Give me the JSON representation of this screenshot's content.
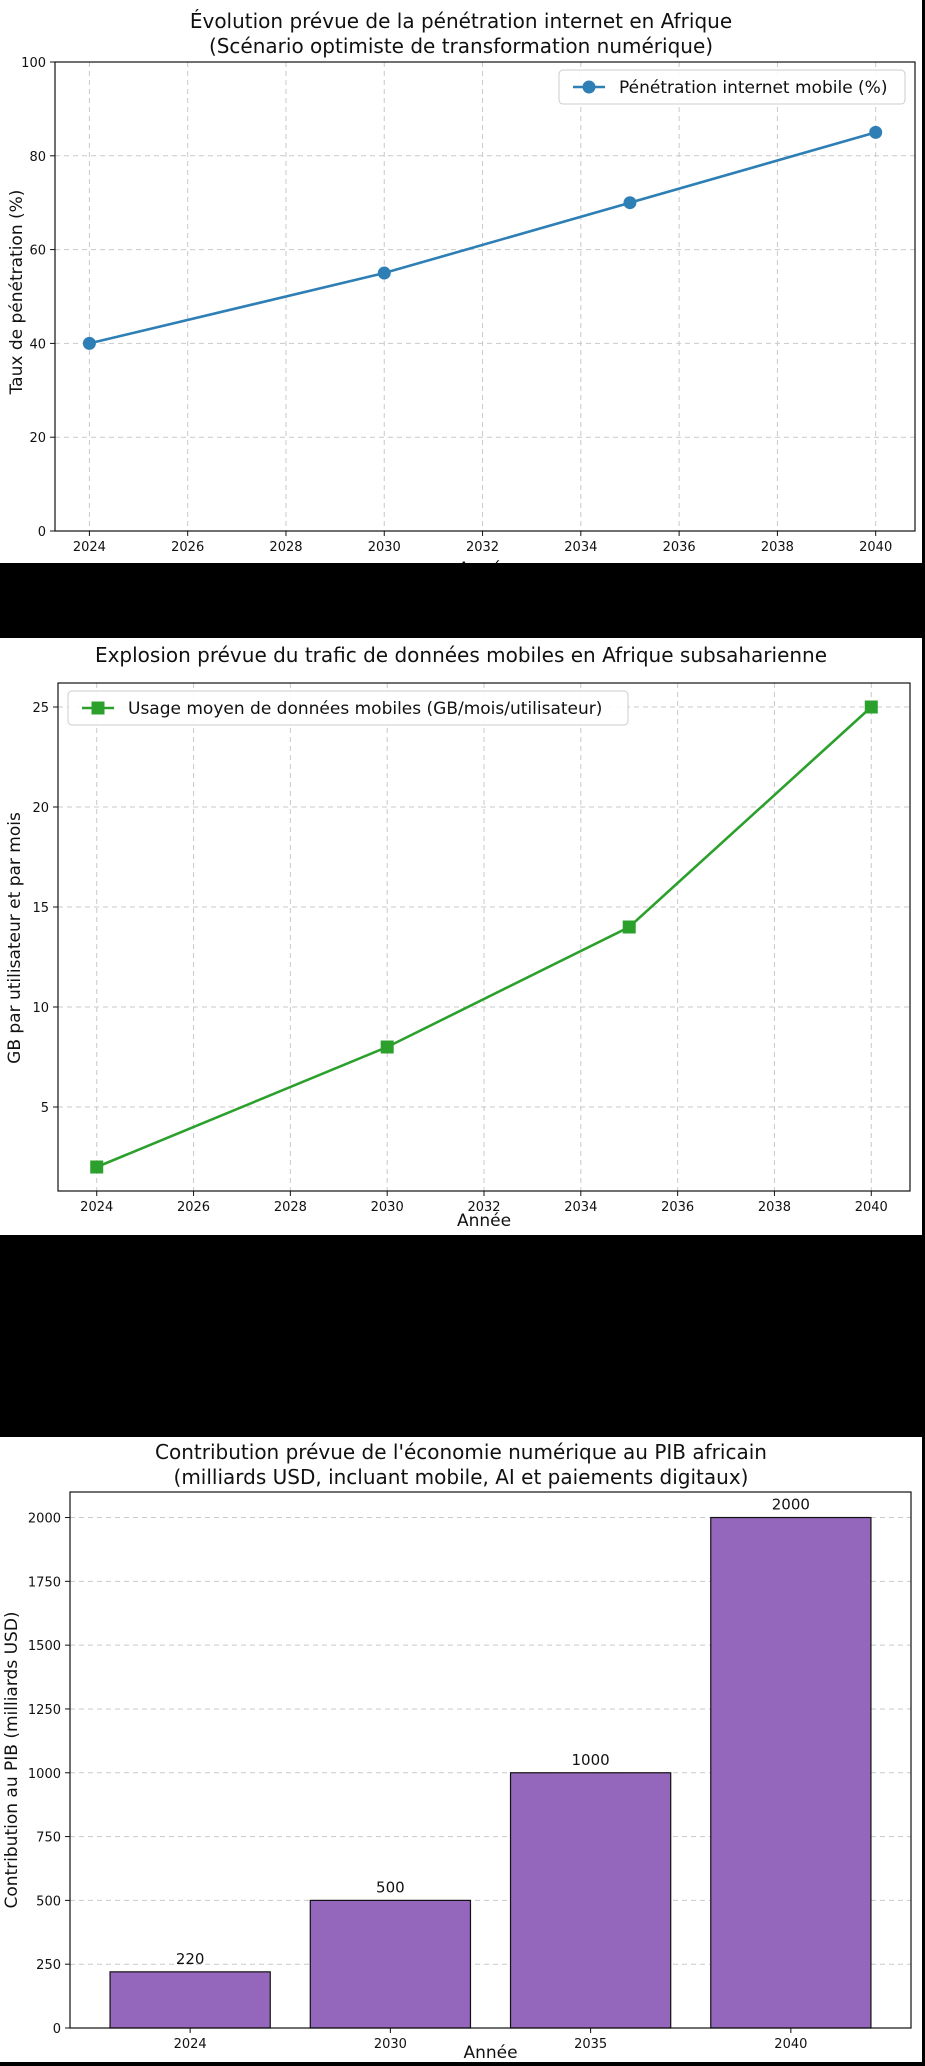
{
  "chart_data": [
    {
      "type": "line",
      "title": "Évolution prévue de la pénétration internet en Afrique",
      "subtitle": "(Scénario optimiste de transformation numérique)",
      "xlabel": "Année",
      "ylabel": "Taux de pénétration (%)",
      "xlim": [
        2023.3,
        2040.8
      ],
      "ylim": [
        0,
        100
      ],
      "xticks": [
        2024,
        2026,
        2028,
        2030,
        2032,
        2034,
        2036,
        2038,
        2040
      ],
      "yticks": [
        0,
        20,
        40,
        60,
        80,
        100
      ],
      "grid": true,
      "legend_position": "top-right",
      "series": [
        {
          "name": "Pénétration internet mobile (%)",
          "color": "#2e7fb5",
          "marker": "circle",
          "x": [
            2024,
            2030,
            2035,
            2040
          ],
          "y": [
            40,
            55,
            70,
            85
          ]
        }
      ]
    },
    {
      "type": "line",
      "title": "Explosion prévue du trafic de données mobiles en Afrique subsaharienne",
      "subtitle": "",
      "xlabel": "Année",
      "ylabel": "GB par utilisateur et par mois",
      "xlim": [
        2023.2,
        2040.8
      ],
      "ylim": [
        0.8,
        26.2
      ],
      "xticks": [
        2024,
        2026,
        2028,
        2030,
        2032,
        2034,
        2036,
        2038,
        2040
      ],
      "yticks": [
        5,
        10,
        15,
        20,
        25
      ],
      "grid": true,
      "legend_position": "top-left",
      "series": [
        {
          "name": "Usage moyen de données mobiles (GB/mois/utilisateur)",
          "color": "#2ca02c",
          "marker": "square",
          "x": [
            2024,
            2030,
            2035,
            2040
          ],
          "y": [
            2,
            8,
            14,
            25
          ]
        }
      ]
    },
    {
      "type": "bar",
      "title": "Contribution prévue de l'économie numérique au PIB africain",
      "subtitle": "(milliards USD, incluant mobile, AI et paiements digitaux)",
      "xlabel": "Année",
      "ylabel": "Contribution au PIB (milliards USD)",
      "ylim": [
        0,
        2100
      ],
      "yticks": [
        0,
        250,
        500,
        750,
        1000,
        1250,
        1500,
        1750,
        2000
      ],
      "grid": true,
      "color": "#9467bd",
      "categories": [
        "2024",
        "2030",
        "2035",
        "2040"
      ],
      "values": [
        220,
        500,
        1000,
        2000
      ],
      "data_labels": [
        "220",
        "500",
        "1000",
        "2000"
      ]
    }
  ]
}
